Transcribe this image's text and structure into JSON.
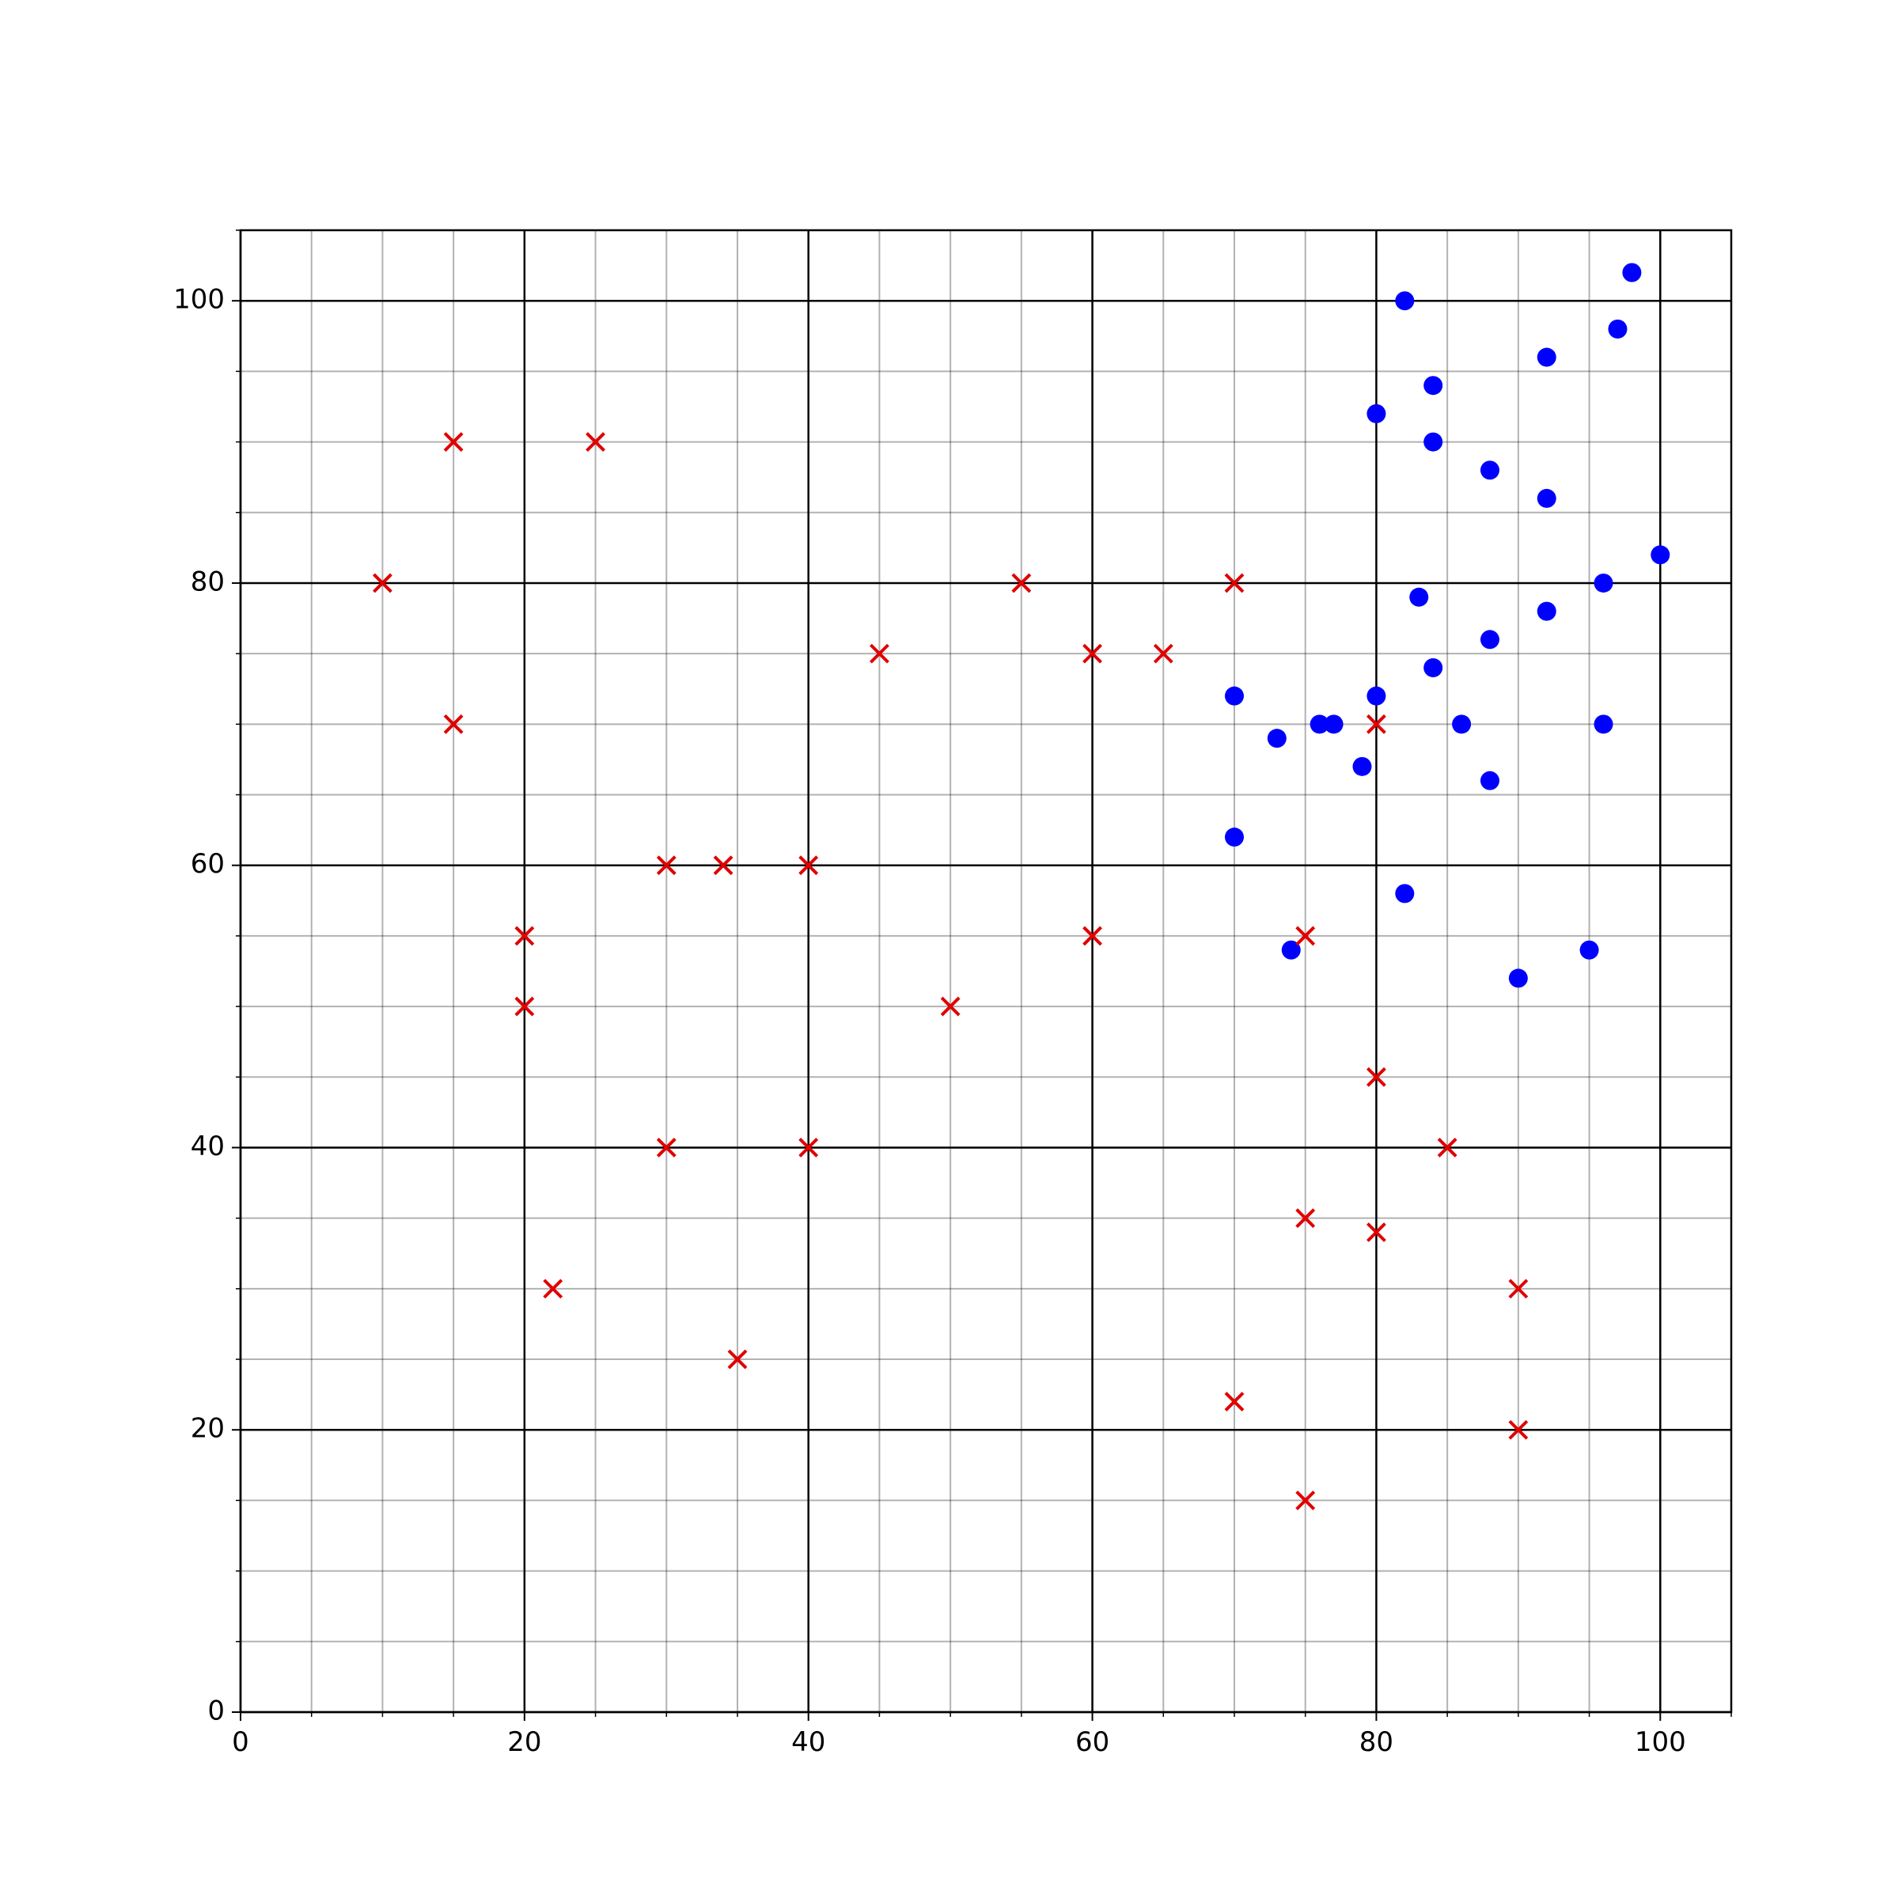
{
  "chart_data": {
    "type": "scatter",
    "xlim": [
      0,
      105
    ],
    "ylim": [
      0,
      105
    ],
    "xticks": [
      0,
      20,
      40,
      60,
      80,
      100
    ],
    "yticks": [
      0,
      20,
      40,
      60,
      80,
      100
    ],
    "xminorticks": [
      5,
      10,
      15,
      25,
      30,
      35,
      45,
      50,
      55,
      65,
      70,
      75,
      85,
      90,
      95,
      105
    ],
    "yminorticks": [
      5,
      10,
      15,
      25,
      30,
      35,
      45,
      50,
      55,
      65,
      70,
      75,
      85,
      90,
      95,
      105
    ],
    "grid": true,
    "series": [
      {
        "color": "#0000ff",
        "marker": "circle",
        "x": [
          82,
          98,
          97,
          92,
          84,
          80,
          84,
          88,
          92,
          100,
          96,
          83,
          92,
          88,
          84,
          70,
          80,
          73,
          76,
          77,
          86,
          96,
          79,
          88,
          70,
          82,
          74,
          95,
          90
        ],
        "values": [
          100,
          102,
          98,
          96,
          94,
          92,
          90,
          88,
          86,
          82,
          80,
          79,
          78,
          76,
          74,
          72,
          72,
          69,
          70,
          70,
          70,
          70,
          67,
          66,
          62,
          58,
          54,
          54,
          52
        ]
      },
      {
        "color": "#e00000",
        "marker": "x",
        "x": [
          15,
          25,
          10,
          55,
          70,
          45,
          60,
          65,
          15,
          80,
          30,
          34,
          40,
          20,
          60,
          75,
          20,
          50,
          80,
          30,
          40,
          85,
          75,
          80,
          22,
          90,
          35,
          70,
          90,
          75
        ],
        "values": [
          90,
          90,
          80,
          80,
          80,
          75,
          75,
          75,
          70,
          70,
          60,
          60,
          60,
          55,
          55,
          55,
          50,
          50,
          45,
          40,
          40,
          40,
          35,
          34,
          30,
          30,
          25,
          22,
          20,
          15
        ]
      }
    ]
  }
}
